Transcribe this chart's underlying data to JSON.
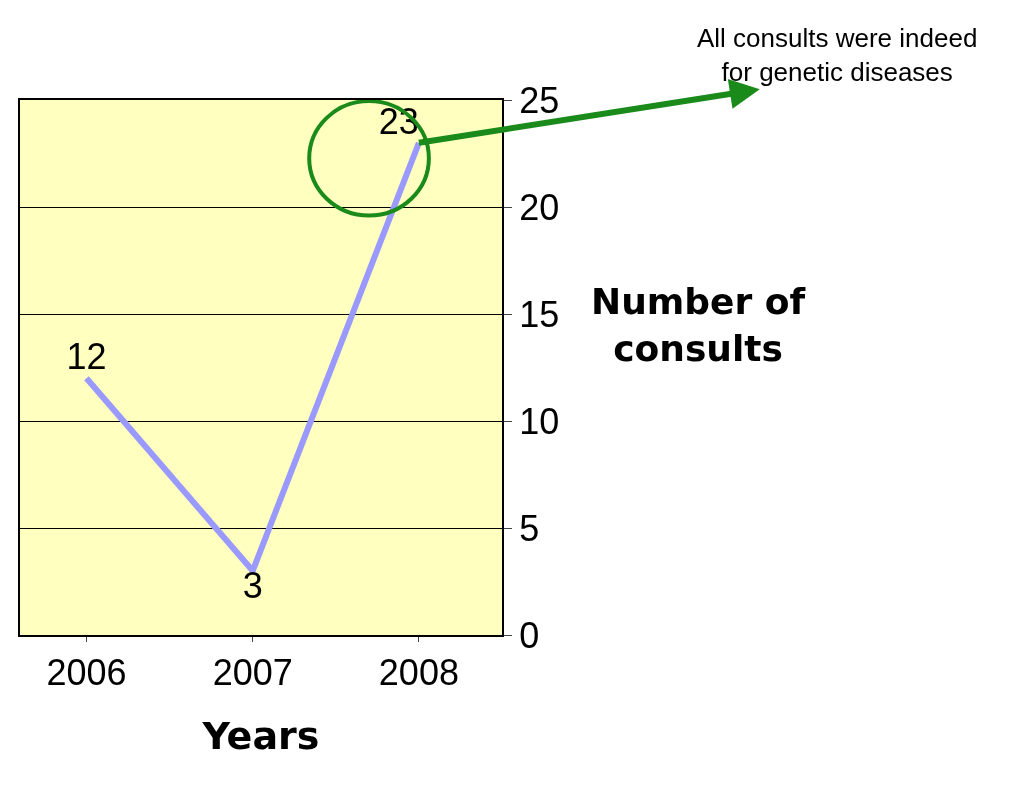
{
  "chart_data": {
    "type": "line",
    "xlabel": "Years",
    "ylabel": "Number of consults",
    "categories": [
      "2006",
      "2007",
      "2008"
    ],
    "series": [
      {
        "color": "#9999ff",
        "values": [
          12,
          3,
          23
        ]
      }
    ],
    "ylim": [
      0,
      25
    ],
    "yticks": [
      0,
      5,
      10,
      15,
      20,
      25
    ],
    "grid": "y",
    "marker": "none",
    "line_style": "solid",
    "data_labels": true,
    "annotations": [
      {
        "text": "All consults were indeed for genetic diseases",
        "x": "2008",
        "y": 23
      }
    ]
  }
}
